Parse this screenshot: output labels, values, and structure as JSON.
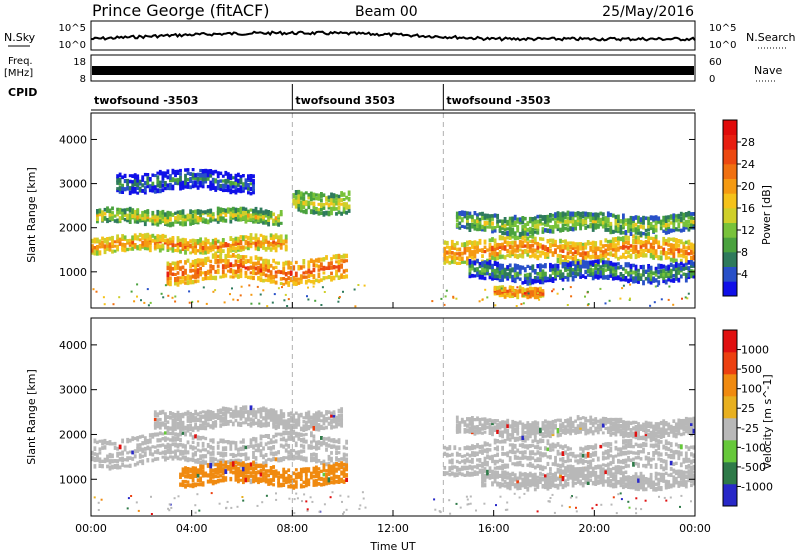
{
  "header": {
    "station": "Prince George (fitACF)",
    "beam": "Beam 00",
    "date": "25/May/2016"
  },
  "strip_noise": {
    "left_label": "N.Sky",
    "right_label": "N.Search",
    "left_ticks": [
      "10^5",
      "10^0"
    ],
    "right_ticks": [
      "10^5",
      "10^0"
    ]
  },
  "strip_freq": {
    "left_label_1": "Freq.",
    "left_label_2": "[MHz]",
    "right_label": "Nave",
    "left_ticks": [
      "18",
      "8"
    ],
    "right_ticks": [
      "60",
      "0"
    ]
  },
  "strip_cpid": {
    "label": "CPID",
    "segments": [
      {
        "name": "twofsound -3503",
        "start_hour": 0,
        "end_hour": 8
      },
      {
        "name": "twofsound 3503",
        "start_hour": 8,
        "end_hour": 14
      },
      {
        "name": "twofsound -3503",
        "start_hour": 14,
        "end_hour": 24
      }
    ]
  },
  "colorbar_power": {
    "label": "Power [dB]",
    "ticks": [
      "4",
      "8",
      "12",
      "16",
      "20",
      "24",
      "28"
    ],
    "colors": [
      "#1010e8",
      "#2850c8",
      "#2e7a5c",
      "#4aa23e",
      "#78c23a",
      "#cfcf2a",
      "#f5c21a",
      "#f59a12",
      "#f07010",
      "#ec4810",
      "#e81e10",
      "#e00a0a"
    ]
  },
  "colorbar_velocity": {
    "label": "Velocity [m s^-1]",
    "ticks": [
      "1000",
      "500",
      "100",
      "25",
      "-25",
      "-100",
      "-500",
      "-1000"
    ],
    "colors": [
      "#2828c8",
      "#2e7a48",
      "#66c83a",
      "#b8b8b8",
      "#e8b020",
      "#f08a10",
      "#ec4010",
      "#e01010"
    ]
  },
  "chart_data": [
    {
      "type": "heatmap",
      "title": "",
      "xlabel": "",
      "ylabel": "Slant Range [km]",
      "xlim": [
        0,
        24
      ],
      "ylim": [
        180,
        4600
      ],
      "x_tick_labels": [
        "00:00",
        "04:00",
        "08:00",
        "12:00",
        "16:00",
        "20:00",
        "00:00"
      ],
      "y_ticks": [
        1000,
        2000,
        3000,
        4000
      ],
      "quantity": "Power [dB]",
      "vertical_markers_hour": [
        8,
        14
      ],
      "echo_regions": [
        {
          "t_start": 0.0,
          "t_end": 7.8,
          "range_center": 1620,
          "range_width": 150,
          "value": 22
        },
        {
          "t_start": 0.2,
          "t_end": 7.6,
          "range_center": 2250,
          "range_width": 130,
          "value": 16
        },
        {
          "t_start": 3.0,
          "t_end": 10.2,
          "range_center": 1050,
          "range_width": 250,
          "value": 24
        },
        {
          "t_start": 8.0,
          "t_end": 10.3,
          "range_center": 2600,
          "range_width": 220,
          "value": 16
        },
        {
          "t_start": 1.0,
          "t_end": 6.5,
          "range_center": 3050,
          "range_width": 200,
          "value": 8
        },
        {
          "t_start": 14.0,
          "t_end": 24.0,
          "range_center": 1500,
          "range_width": 230,
          "value": 22
        },
        {
          "t_start": 14.5,
          "t_end": 24.0,
          "range_center": 2100,
          "range_width": 180,
          "value": 14
        },
        {
          "t_start": 15.0,
          "t_end": 24.0,
          "range_center": 1000,
          "range_width": 180,
          "value": 10
        },
        {
          "t_start": 16.0,
          "t_end": 18.0,
          "range_center": 560,
          "range_width": 90,
          "value": 24
        }
      ]
    },
    {
      "type": "heatmap",
      "title": "",
      "xlabel": "Time UT",
      "ylabel": "Slant Range [km]",
      "xlim": [
        0,
        24
      ],
      "ylim": [
        180,
        4600
      ],
      "x_tick_labels": [
        "00:00",
        "04:00",
        "08:00",
        "12:00",
        "16:00",
        "20:00",
        "00:00"
      ],
      "y_ticks": [
        1000,
        2000,
        3000,
        4000
      ],
      "quantity": "Velocity [m s^-1]",
      "vertical_markers_hour": [
        8,
        14
      ],
      "echo_regions": [
        {
          "t_start": 0.0,
          "t_end": 10.2,
          "range_center": 1650,
          "range_width": 300,
          "value": 0
        },
        {
          "t_start": 2.5,
          "t_end": 10.0,
          "range_center": 2350,
          "range_width": 180,
          "value": 0
        },
        {
          "t_start": 3.5,
          "t_end": 10.2,
          "range_center": 1100,
          "range_width": 200,
          "value": -100
        },
        {
          "t_start": 14.0,
          "t_end": 24.0,
          "range_center": 1500,
          "range_width": 320,
          "value": 0
        },
        {
          "t_start": 14.5,
          "t_end": 24.0,
          "range_center": 2150,
          "range_width": 160,
          "value": 0
        },
        {
          "t_start": 15.5,
          "t_end": 24.0,
          "range_center": 1000,
          "range_width": 160,
          "value": 0
        }
      ]
    }
  ]
}
